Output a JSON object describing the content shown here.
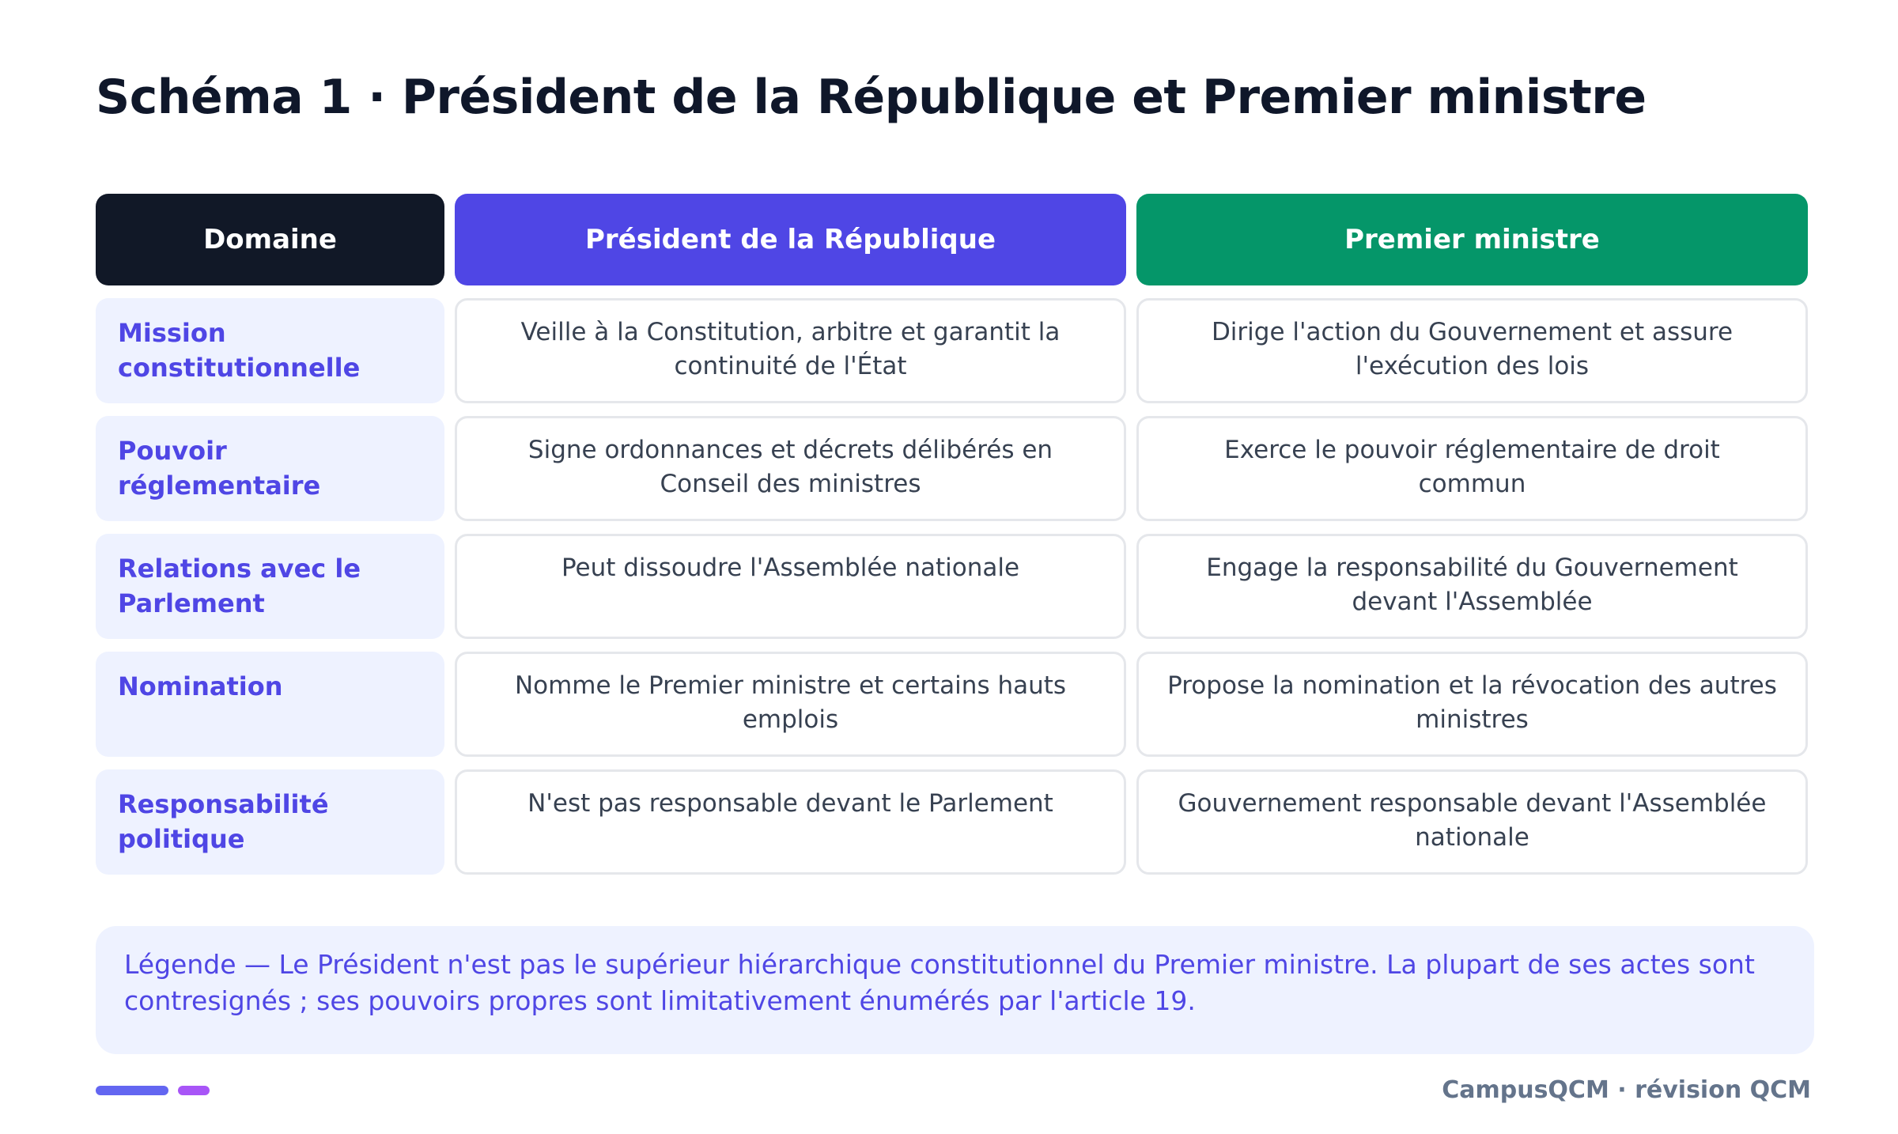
{
  "title": "Schéma 1 · Président de la République et Premier ministre",
  "headers": {
    "domain": "Domaine",
    "president": "Président de la République",
    "pm": "Premier ministre"
  },
  "rows": [
    {
      "domain": "Mission constitutionnelle",
      "president": "Veille à la Constitution, arbitre et garantit la continuité de l'État",
      "pm": "Dirige l'action du Gouvernement et assure l'exécution des lois"
    },
    {
      "domain": "Pouvoir réglementaire",
      "president": "Signe ordonnances et décrets délibérés en Conseil des ministres",
      "pm": "Exerce le pouvoir réglementaire de droit commun"
    },
    {
      "domain": "Relations avec le Parlement",
      "president": "Peut dissoudre l'Assemblée nationale",
      "pm": "Engage la responsabilité du Gouvernement devant l'Assemblée"
    },
    {
      "domain": "Nomination",
      "president": "Nomme le Premier ministre et certains hauts emplois",
      "pm": "Propose la nomination et la révocation des autres ministres"
    },
    {
      "domain": "Responsabilité politique",
      "president": "N'est pas responsable devant le Parlement",
      "pm": "Gouvernement responsable devant l'Assemblée nationale"
    }
  ],
  "legend": "Légende — Le Président n'est pas le supérieur hiérarchique constitutionnel du Premier ministre. La plupart de ses actes sont contresignés ; ses pouvoirs propres sont limitativement énumérés par l'article 19.",
  "footer": "CampusQCM · révision QCM",
  "colors": {
    "domain_header": "#111827",
    "president_header": "#4f46e5",
    "pm_header": "#059669",
    "accent_bar_1": "#6366f1",
    "accent_bar_2": "#a855f7"
  }
}
